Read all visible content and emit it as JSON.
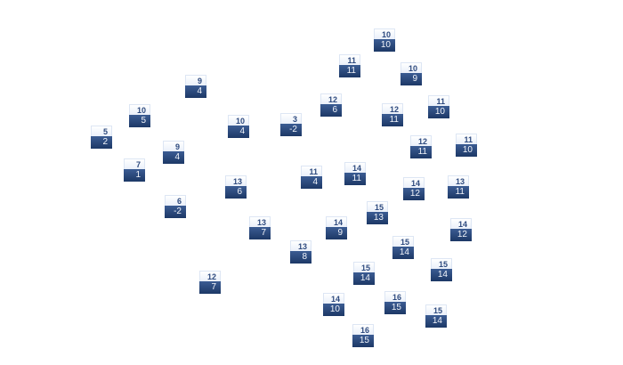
{
  "nodes": [
    {
      "top": "10",
      "bottom": "10"
    },
    {
      "top": "11",
      "bottom": "11"
    },
    {
      "top": "10",
      "bottom": "9"
    },
    {
      "top": "9",
      "bottom": "4"
    },
    {
      "top": "12",
      "bottom": "6"
    },
    {
      "top": "12",
      "bottom": "11"
    },
    {
      "top": "11",
      "bottom": "10"
    },
    {
      "top": "10",
      "bottom": "5"
    },
    {
      "top": "10",
      "bottom": "4"
    },
    {
      "top": "3",
      "bottom": "-2"
    },
    {
      "top": "5",
      "bottom": "2"
    },
    {
      "top": "9",
      "bottom": "4"
    },
    {
      "top": "12",
      "bottom": "11"
    },
    {
      "top": "11",
      "bottom": "10"
    },
    {
      "top": "7",
      "bottom": "1"
    },
    {
      "top": "11",
      "bottom": "4"
    },
    {
      "top": "14",
      "bottom": "11"
    },
    {
      "top": "13",
      "bottom": "6"
    },
    {
      "top": "14",
      "bottom": "12"
    },
    {
      "top": "13",
      "bottom": "11"
    },
    {
      "top": "6",
      "bottom": "-2"
    },
    {
      "top": "15",
      "bottom": "13"
    },
    {
      "top": "13",
      "bottom": "7"
    },
    {
      "top": "14",
      "bottom": "9"
    },
    {
      "top": "14",
      "bottom": "12"
    },
    {
      "top": "13",
      "bottom": "8"
    },
    {
      "top": "15",
      "bottom": "14"
    },
    {
      "top": "15",
      "bottom": "14"
    },
    {
      "top": "15",
      "bottom": "14"
    },
    {
      "top": "12",
      "bottom": "7"
    },
    {
      "top": "16",
      "bottom": "15"
    },
    {
      "top": "14",
      "bottom": "10"
    },
    {
      "top": "15",
      "bottom": "14"
    },
    {
      "top": "16",
      "bottom": "15"
    }
  ],
  "colors": {
    "top_text": "#2f4b7f",
    "bottom_fill": "#1d3866",
    "bottom_text": "#f2f5fb"
  }
}
